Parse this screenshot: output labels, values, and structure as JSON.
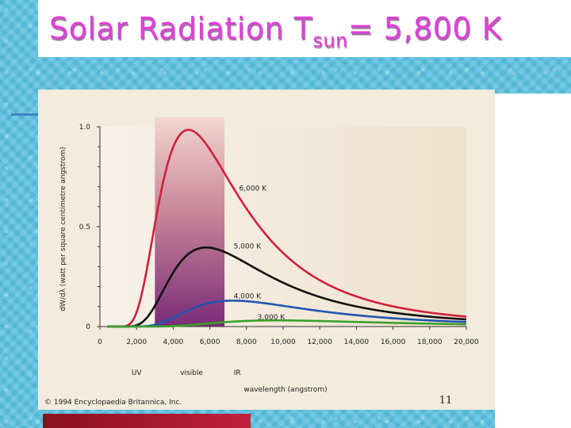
{
  "slide": {
    "title_main": "Solar Radiation T",
    "title_sub": "sun",
    "title_rest": "= 5,800 K",
    "page_number": "11",
    "copyright": "© 1994 Encyclopaedia Britannica, Inc."
  },
  "chart_data": {
    "type": "line",
    "xlabel": "wavelength (angstrom)",
    "ylabel": "dW/dλ (watt per square centimetre angstrom)",
    "xlim": [
      0,
      20000
    ],
    "ylim": [
      0,
      1.0
    ],
    "x_ticks": [
      0,
      2000,
      4000,
      6000,
      8000,
      10000,
      12000,
      14000,
      16000,
      18000,
      20000
    ],
    "x_tick_labels": [
      "0",
      "2,000",
      "4,000",
      "6,000",
      "8,000",
      "10,000",
      "12,000",
      "14,000",
      "16,000",
      "18,000",
      "20,000"
    ],
    "y_ticks": [
      0,
      0.5,
      1.0
    ],
    "y_tick_labels": [
      "0",
      "0.5",
      "1.0"
    ],
    "region_labels": [
      {
        "text": "UV",
        "x": 2000
      },
      {
        "text": "visible",
        "x": 5000
      },
      {
        "text": "IR",
        "x": 7500
      }
    ],
    "visible_band": [
      3000,
      6800
    ],
    "series": [
      {
        "name": "6,000 K",
        "temp": 6000,
        "color": "#d01f3c",
        "label_x": 7600,
        "label_y": 0.68
      },
      {
        "name": "5,000 K",
        "temp": 5000,
        "color": "#111111",
        "label_x": 7300,
        "label_y": 0.39
      },
      {
        "name": "4,000 K",
        "temp": 4000,
        "color": "#1f56b0",
        "label_x": 7300,
        "label_y": 0.14
      },
      {
        "name": "3,000 K",
        "temp": 3000,
        "color": "#3aa02a",
        "label_x": 8600,
        "label_y": 0.035
      }
    ]
  }
}
